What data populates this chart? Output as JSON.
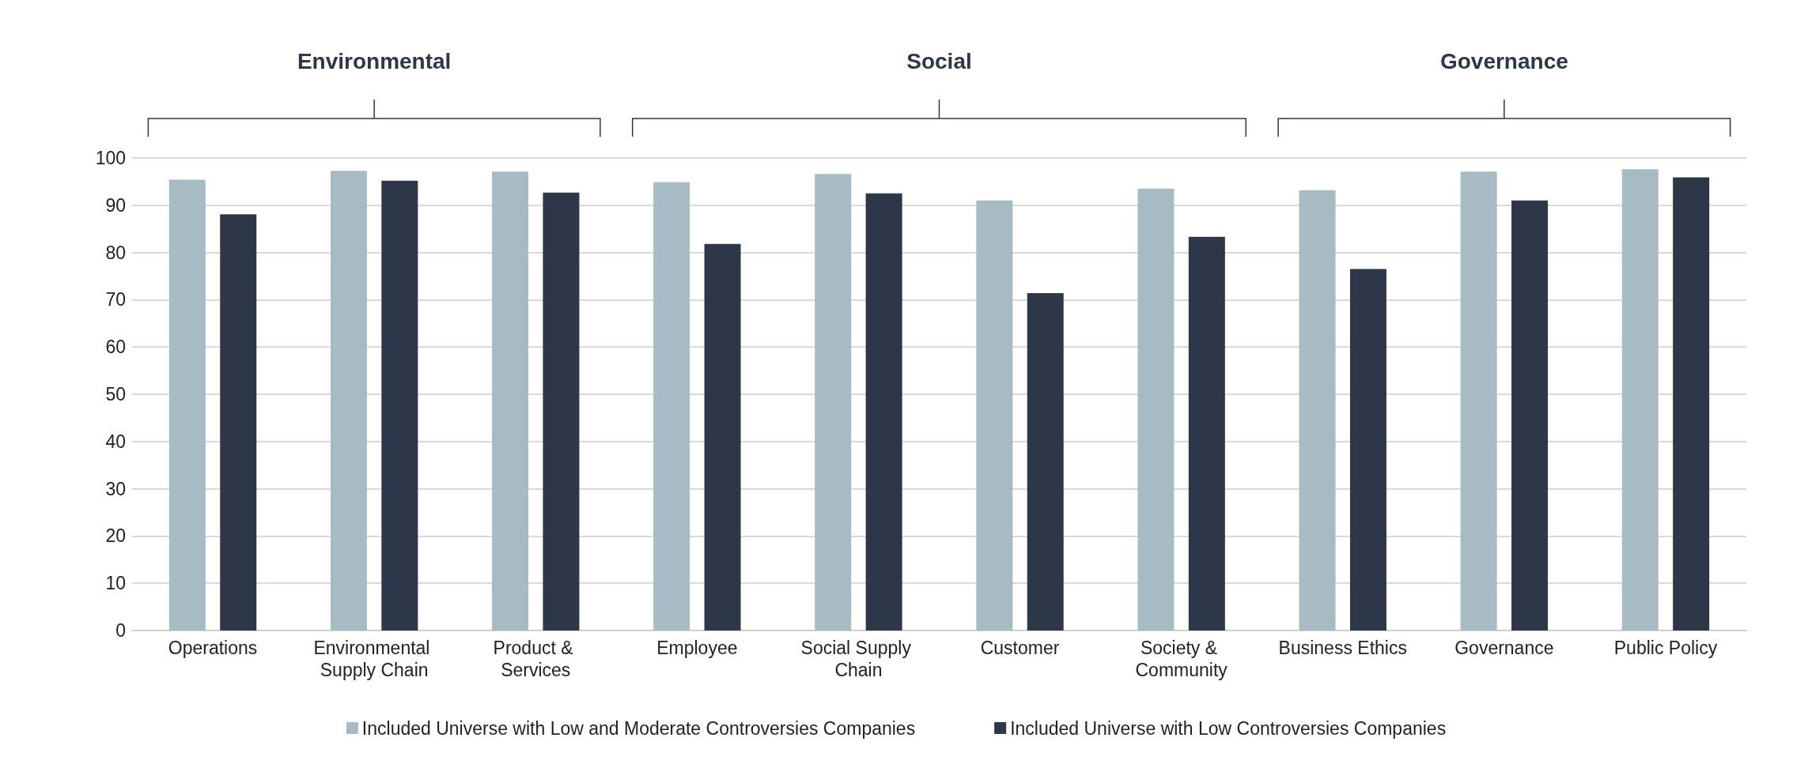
{
  "chart_data": {
    "type": "bar",
    "categories": [
      "Operations",
      "Environmental Supply Chain",
      "Product & Services",
      "Employee",
      "Social Supply Chain",
      "Customer",
      "Society & Community",
      "Business Ethics",
      "Governance",
      "Public Policy"
    ],
    "series": [
      {
        "name": "Included Universe with Low and Moderate Controversies Companies",
        "color": "#a7bbc3",
        "values": [
          95.4,
          97.3,
          97.1,
          94.9,
          96.6,
          91.0,
          93.5,
          93.2,
          97.1,
          97.6
        ]
      },
      {
        "name": "Included Universe with Low Controversies Companies",
        "color": "#2d3748",
        "values": [
          88.1,
          95.2,
          92.7,
          81.8,
          92.5,
          71.4,
          83.3,
          76.5,
          91.0,
          95.9
        ]
      }
    ],
    "annotations": [
      "Environmental",
      "Social",
      "Governance"
    ],
    "ylim": [
      0,
      100
    ],
    "yticks": [
      0,
      10,
      20,
      30,
      40,
      50,
      60,
      70,
      80,
      90,
      100
    ],
    "grid": "y",
    "legend": "bottom"
  }
}
